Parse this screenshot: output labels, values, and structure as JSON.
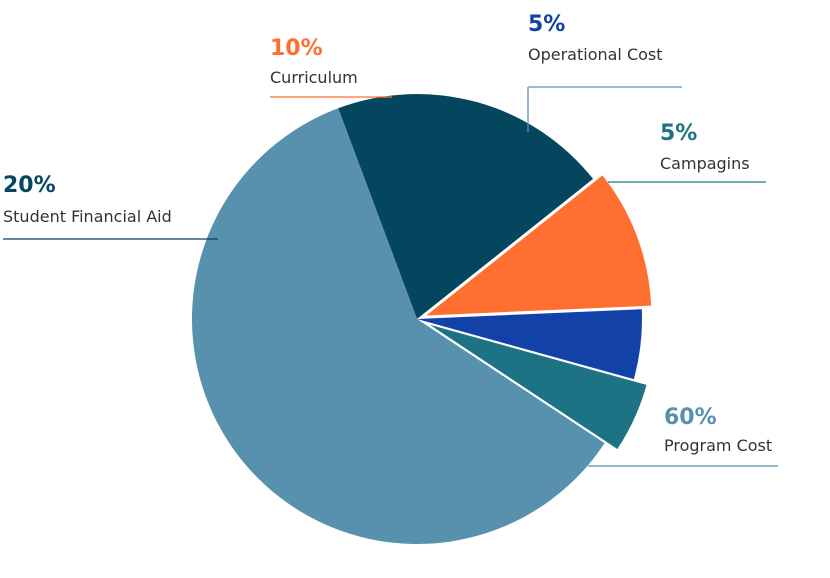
{
  "chart_data": {
    "type": "pie",
    "title": "",
    "unit": "%",
    "slices": [
      {
        "label": "Student Financial Aid",
        "value": 20,
        "percent_label": "20%",
        "color": "#05465F"
      },
      {
        "label": "Curriculum",
        "value": 10,
        "percent_label": "10%",
        "color": "#FF6F31"
      },
      {
        "label": "Operational Cost",
        "value": 5,
        "percent_label": "5%",
        "color": "#1241A7"
      },
      {
        "label": "Campagins",
        "value": 5,
        "percent_label": "5%",
        "color": "#1D7384"
      },
      {
        "label": "Program Cost",
        "value": 60,
        "percent_label": "60%",
        "color": "#5791AE"
      }
    ],
    "legend": "none",
    "labels_placement": "outside with leader lines",
    "exploded_slices": [
      "Curriculum",
      "Campagins"
    ]
  }
}
